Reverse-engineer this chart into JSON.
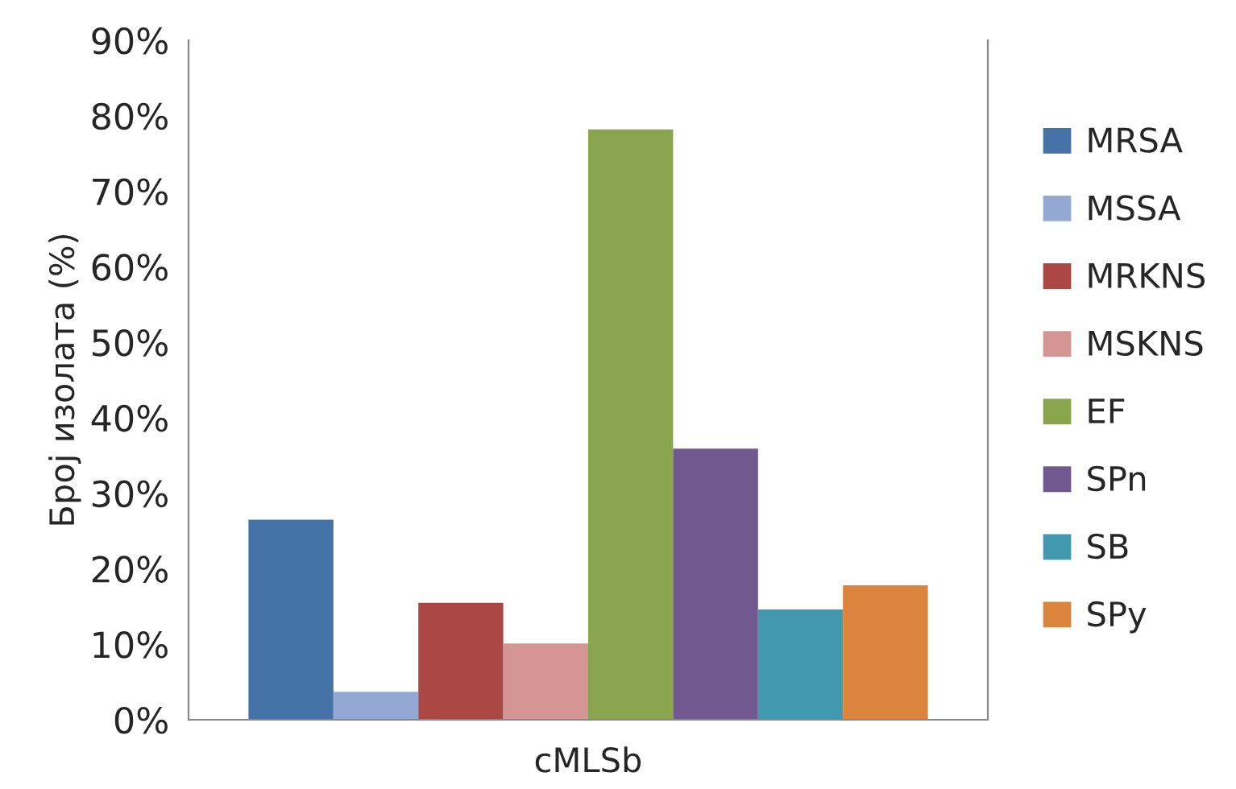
{
  "chart_data": {
    "type": "bar",
    "ylabel": "Број изолата (%)",
    "categories": [
      "cMLSb"
    ],
    "series": [
      {
        "name": "MRSA",
        "color": "#4572a7",
        "values": [
          26.5
        ]
      },
      {
        "name": "MSSA",
        "color": "#93a9d4",
        "values": [
          3.7
        ]
      },
      {
        "name": "MRKNS",
        "color": "#aa4643",
        "values": [
          15.5
        ]
      },
      {
        "name": "MSKNS",
        "color": "#d59593",
        "values": [
          10.1
        ]
      },
      {
        "name": "EF",
        "color": "#89a54e",
        "values": [
          78.2
        ]
      },
      {
        "name": "SPn",
        "color": "#71588f",
        "values": [
          35.9
        ]
      },
      {
        "name": "SB",
        "color": "#4198af",
        "values": [
          14.6
        ]
      },
      {
        "name": "SPy",
        "color": "#db843d",
        "values": [
          17.8
        ]
      }
    ],
    "ylim": [
      0,
      90
    ],
    "yticks": [
      {
        "value": 0,
        "label": "0%"
      },
      {
        "value": 10,
        "label": "10%"
      },
      {
        "value": 20,
        "label": "20%"
      },
      {
        "value": 30,
        "label": "30%"
      },
      {
        "value": 40,
        "label": "40%"
      },
      {
        "value": 50,
        "label": "50%"
      },
      {
        "value": 60,
        "label": "60%"
      },
      {
        "value": 70,
        "label": "70%"
      },
      {
        "value": 80,
        "label": "80%"
      },
      {
        "value": 90,
        "label": "90%"
      }
    ],
    "grid": false,
    "legend": "right"
  }
}
